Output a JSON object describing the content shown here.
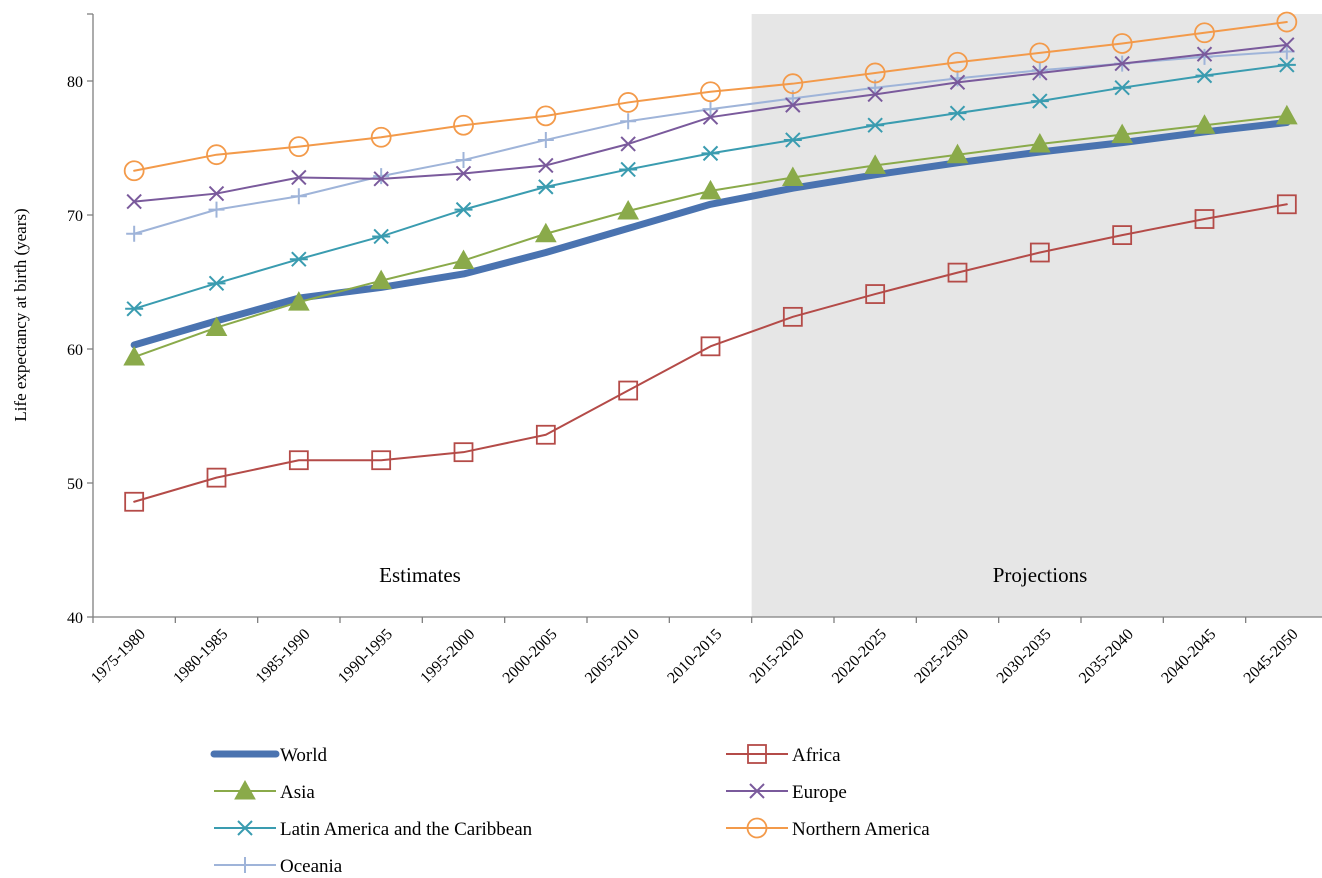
{
  "chart_data": {
    "type": "line",
    "title": "",
    "xlabel": "",
    "ylabel": "Life expectancy at birth (years)",
    "ylim": [
      40,
      85
    ],
    "yticks": [
      40,
      50,
      60,
      70,
      80
    ],
    "grid": false,
    "legend_position": "bottom",
    "categories": [
      "1975-1980",
      "1980-1985",
      "1985-1990",
      "1990-1995",
      "1995-2000",
      "2000-2005",
      "2005-2010",
      "2010-2015",
      "2015-2020",
      "2020-2025",
      "2025-2030",
      "2030-2035",
      "2035-2040",
      "2040-2045",
      "2045-2050"
    ],
    "annotations": {
      "estimates": "Estimates",
      "projections": "Projections",
      "projection_start_index": 8
    },
    "series": [
      {
        "name": "World",
        "color": "#4a73b0",
        "marker": "none",
        "values": [
          60.3,
          62.1,
          63.8,
          64.6,
          65.6,
          67.2,
          69.0,
          70.8,
          72.0,
          73.0,
          73.9,
          74.7,
          75.4,
          76.2,
          76.9
        ]
      },
      {
        "name": "Africa",
        "color": "#b44b48",
        "marker": "square",
        "values": [
          48.6,
          50.4,
          51.7,
          51.7,
          52.3,
          53.6,
          56.9,
          60.2,
          62.4,
          64.1,
          65.7,
          67.2,
          68.5,
          69.7,
          70.8
        ]
      },
      {
        "name": "Asia",
        "color": "#8aaa4a",
        "marker": "triangle",
        "values": [
          59.4,
          61.6,
          63.5,
          65.1,
          66.6,
          68.6,
          70.3,
          71.8,
          72.8,
          73.7,
          74.5,
          75.3,
          76.0,
          76.7,
          77.4
        ]
      },
      {
        "name": "Europe",
        "color": "#7a5a9c",
        "marker": "x",
        "values": [
          71.0,
          71.6,
          72.8,
          72.7,
          73.1,
          73.7,
          75.3,
          77.3,
          78.2,
          79.0,
          79.9,
          80.6,
          81.3,
          82.0,
          82.7
        ]
      },
      {
        "name": "Latin America and the Caribbean",
        "color": "#3a9cb0",
        "marker": "asterisk",
        "values": [
          63.0,
          64.9,
          66.7,
          68.4,
          70.4,
          72.1,
          73.4,
          74.6,
          75.6,
          76.7,
          77.6,
          78.5,
          79.5,
          80.4,
          81.2
        ]
      },
      {
        "name": "Northern America",
        "color": "#f39a4a",
        "marker": "circle",
        "values": [
          73.3,
          74.5,
          75.1,
          75.8,
          76.7,
          77.4,
          78.4,
          79.2,
          79.8,
          80.6,
          81.4,
          82.1,
          82.8,
          83.6,
          84.4
        ]
      },
      {
        "name": "Oceania",
        "color": "#9fb4d9",
        "marker": "plus",
        "values": [
          68.6,
          70.4,
          71.4,
          72.9,
          74.1,
          75.6,
          77.0,
          77.9,
          78.7,
          79.5,
          80.2,
          80.8,
          81.3,
          81.8,
          82.2
        ]
      }
    ]
  }
}
